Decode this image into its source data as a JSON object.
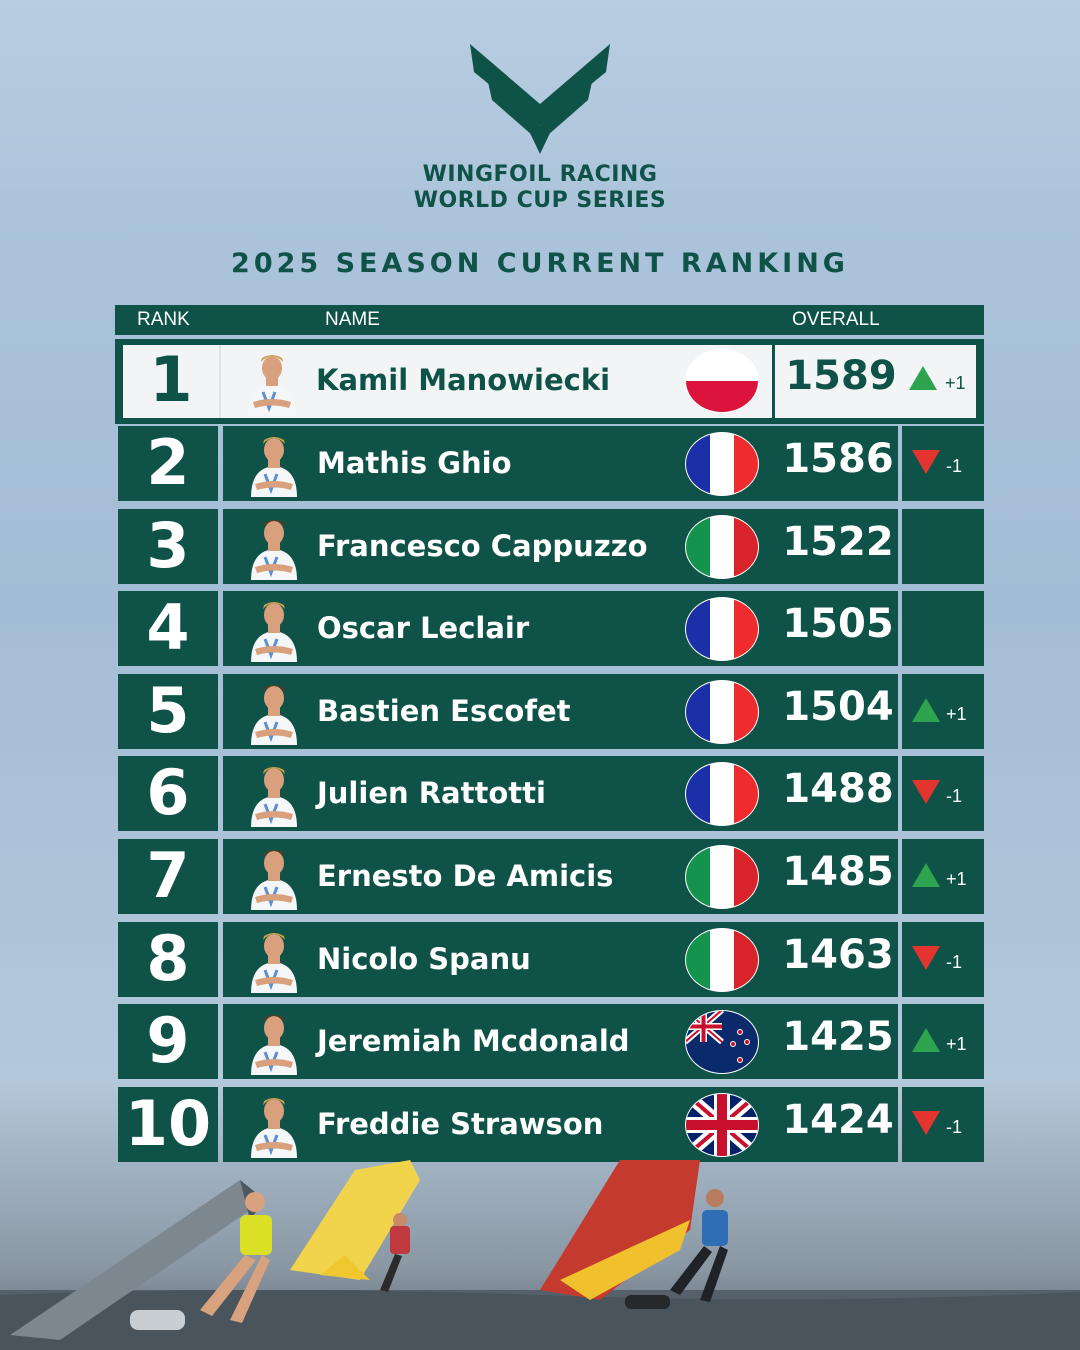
{
  "brand": {
    "line1": "WINGFOIL RACING",
    "line2": "WORLD CUP SERIES",
    "logo_icon": "chevron-wing-logo-icon",
    "color": "#0f5247"
  },
  "title": "2025 SEASON CURRENT RANKING",
  "table": {
    "headers": {
      "rank": "RANK",
      "name": "NAME",
      "overall": "OVERALL"
    },
    "rows": [
      {
        "rank": "1",
        "name": "Kamil Manowiecki",
        "flag": "poland",
        "score": "1589",
        "trend": "up",
        "delta": "+1"
      },
      {
        "rank": "2",
        "name": "Mathis Ghio",
        "flag": "france",
        "score": "1586",
        "trend": "down",
        "delta": "-1"
      },
      {
        "rank": "3",
        "name": "Francesco Cappuzzo",
        "flag": "italy",
        "score": "1522",
        "trend": "none",
        "delta": ""
      },
      {
        "rank": "4",
        "name": "Oscar Leclair",
        "flag": "france",
        "score": "1505",
        "trend": "none",
        "delta": ""
      },
      {
        "rank": "5",
        "name": "Bastien Escofet",
        "flag": "france",
        "score": "1504",
        "trend": "up",
        "delta": "+1"
      },
      {
        "rank": "6",
        "name": "Julien Rattotti",
        "flag": "france",
        "score": "1488",
        "trend": "down",
        "delta": "-1"
      },
      {
        "rank": "7",
        "name": "Ernesto De Amicis",
        "flag": "italy",
        "score": "1485",
        "trend": "up",
        "delta": "+1"
      },
      {
        "rank": "8",
        "name": "Nicolo Spanu",
        "flag": "italy",
        "score": "1463",
        "trend": "down",
        "delta": "-1"
      },
      {
        "rank": "9",
        "name": "Jeremiah Mcdonald",
        "flag": "new-zealand",
        "score": "1425",
        "trend": "up",
        "delta": "+1"
      },
      {
        "rank": "10",
        "name": "Freddie Strawson",
        "flag": "united-kingdom",
        "score": "1424",
        "trend": "down",
        "delta": "-1"
      }
    ]
  },
  "colors": {
    "up": "#2ea44f",
    "down": "#e3342f",
    "row": "#0f5247"
  }
}
